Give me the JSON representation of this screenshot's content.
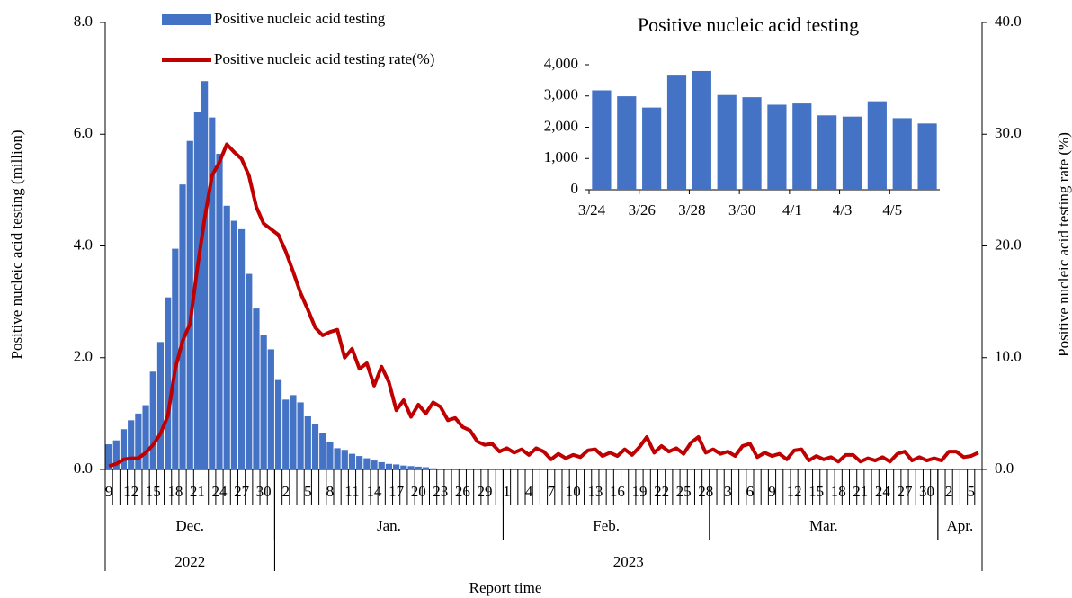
{
  "chart_data": [
    {
      "type": "bar_line",
      "x_label": "Report time",
      "y_label": "Positive nucleic acid testing (million)",
      "y2_label": "Positive nucleic acid testing rate (%)",
      "x": [
        "2022-12-09",
        "2022-12-10",
        "2022-12-11",
        "2022-12-12",
        "2022-12-13",
        "2022-12-14",
        "2022-12-15",
        "2022-12-16",
        "2022-12-17",
        "2022-12-18",
        "2022-12-19",
        "2022-12-20",
        "2022-12-21",
        "2022-12-22",
        "2022-12-23",
        "2022-12-24",
        "2022-12-25",
        "2022-12-26",
        "2022-12-27",
        "2022-12-28",
        "2022-12-29",
        "2022-12-30",
        "2022-12-31",
        "2023-01-01",
        "2023-01-02",
        "2023-01-03",
        "2023-01-04",
        "2023-01-05",
        "2023-01-06",
        "2023-01-07",
        "2023-01-08",
        "2023-01-09",
        "2023-01-10",
        "2023-01-11",
        "2023-01-12",
        "2023-01-13",
        "2023-01-14",
        "2023-01-15",
        "2023-01-16",
        "2023-01-17",
        "2023-01-18",
        "2023-01-19",
        "2023-01-20",
        "2023-01-21",
        "2023-01-22",
        "2023-01-23",
        "2023-01-24",
        "2023-01-25",
        "2023-01-26",
        "2023-01-27",
        "2023-01-28",
        "2023-01-29",
        "2023-01-30",
        "2023-01-31",
        "2023-02-01",
        "2023-02-02",
        "2023-02-03",
        "2023-02-04",
        "2023-02-05",
        "2023-02-06",
        "2023-02-07",
        "2023-02-08",
        "2023-02-09",
        "2023-02-10",
        "2023-02-11",
        "2023-02-12",
        "2023-02-13",
        "2023-02-14",
        "2023-02-15",
        "2023-02-16",
        "2023-02-17",
        "2023-02-18",
        "2023-02-19",
        "2023-02-20",
        "2023-02-21",
        "2023-02-22",
        "2023-02-23",
        "2023-02-24",
        "2023-02-25",
        "2023-02-26",
        "2023-02-27",
        "2023-02-28",
        "2023-03-01",
        "2023-03-02",
        "2023-03-03",
        "2023-03-04",
        "2023-03-05",
        "2023-03-06",
        "2023-03-07",
        "2023-03-08",
        "2023-03-09",
        "2023-03-10",
        "2023-03-11",
        "2023-03-12",
        "2023-03-13",
        "2023-03-14",
        "2023-03-15",
        "2023-03-16",
        "2023-03-17",
        "2023-03-18",
        "2023-03-19",
        "2023-03-20",
        "2023-03-21",
        "2023-03-22",
        "2023-03-23",
        "2023-03-24",
        "2023-03-25",
        "2023-03-26",
        "2023-03-27",
        "2023-03-28",
        "2023-03-29",
        "2023-03-30",
        "2023-03-31",
        "2023-04-01",
        "2023-04-02",
        "2023-04-03",
        "2023-04-04",
        "2023-04-05",
        "2023-04-06"
      ],
      "xticks": [
        {
          "value": "2022-12-09",
          "label": "9"
        },
        {
          "value": "2022-12-12",
          "label": "12"
        },
        {
          "value": "2022-12-15",
          "label": "15"
        },
        {
          "value": "2022-12-18",
          "label": "18"
        },
        {
          "value": "2022-12-21",
          "label": "21"
        },
        {
          "value": "2022-12-24",
          "label": "24"
        },
        {
          "value": "2022-12-27",
          "label": "27"
        },
        {
          "value": "2022-12-30",
          "label": "30"
        },
        {
          "value": "2023-01-02",
          "label": "2"
        },
        {
          "value": "2023-01-05",
          "label": "5"
        },
        {
          "value": "2023-01-08",
          "label": "8"
        },
        {
          "value": "2023-01-11",
          "label": "11"
        },
        {
          "value": "2023-01-14",
          "label": "14"
        },
        {
          "value": "2023-01-17",
          "label": "17"
        },
        {
          "value": "2023-01-20",
          "label": "20"
        },
        {
          "value": "2023-01-23",
          "label": "23"
        },
        {
          "value": "2023-01-26",
          "label": "26"
        },
        {
          "value": "2023-01-29",
          "label": "29"
        },
        {
          "value": "2023-02-01",
          "label": "1"
        },
        {
          "value": "2023-02-04",
          "label": "4"
        },
        {
          "value": "2023-02-07",
          "label": "7"
        },
        {
          "value": "2023-02-10",
          "label": "10"
        },
        {
          "value": "2023-02-13",
          "label": "13"
        },
        {
          "value": "2023-02-16",
          "label": "16"
        },
        {
          "value": "2023-02-19",
          "label": "19"
        },
        {
          "value": "2023-02-22",
          "label": "22"
        },
        {
          "value": "2023-02-25",
          "label": "25"
        },
        {
          "value": "2023-02-28",
          "label": "28"
        },
        {
          "value": "2023-03-03",
          "label": "3"
        },
        {
          "value": "2023-03-06",
          "label": "6"
        },
        {
          "value": "2023-03-09",
          "label": "9"
        },
        {
          "value": "2023-03-12",
          "label": "12"
        },
        {
          "value": "2023-03-15",
          "label": "15"
        },
        {
          "value": "2023-03-18",
          "label": "18"
        },
        {
          "value": "2023-03-21",
          "label": "21"
        },
        {
          "value": "2023-03-24",
          "label": "24"
        },
        {
          "value": "2023-03-27",
          "label": "27"
        },
        {
          "value": "2023-03-30",
          "label": "30"
        },
        {
          "value": "2023-04-02",
          "label": "2"
        },
        {
          "value": "2023-04-05",
          "label": "5"
        }
      ],
      "month_labels": [
        {
          "value": "2022-12",
          "label": "Dec."
        },
        {
          "value": "2023-01",
          "label": "Jan."
        },
        {
          "value": "2023-02",
          "label": "Feb."
        },
        {
          "value": "2023-03",
          "label": "Mar."
        },
        {
          "value": "2023-04",
          "label": "Apr."
        }
      ],
      "year_labels": [
        {
          "value": "2022",
          "label": "2022"
        },
        {
          "value": "2023",
          "label": "2023"
        }
      ],
      "ylim": [
        0,
        8
      ],
      "yticks": [
        {
          "value": 0,
          "label": "0.0"
        },
        {
          "value": 2,
          "label": "2.0"
        },
        {
          "value": 4,
          "label": "4.0"
        },
        {
          "value": 6,
          "label": "6.0"
        },
        {
          "value": 8,
          "label": "8.0"
        }
      ],
      "y2lim": [
        0,
        40
      ],
      "y2ticks": [
        {
          "value": 0,
          "label": "0.0"
        },
        {
          "value": 10,
          "label": "10.0"
        },
        {
          "value": 20,
          "label": "20.0"
        },
        {
          "value": 30,
          "label": "30.0"
        },
        {
          "value": 40,
          "label": "40.0"
        }
      ],
      "series": [
        {
          "name": "Positive nucleic acid testing",
          "type": "bar",
          "color": "#4472c4",
          "values": [
            0.45,
            0.52,
            0.72,
            0.88,
            1.0,
            1.15,
            1.75,
            2.28,
            3.08,
            3.95,
            5.1,
            5.88,
            6.4,
            6.95,
            6.3,
            5.65,
            4.72,
            4.45,
            4.3,
            3.5,
            2.88,
            2.4,
            2.15,
            1.6,
            1.25,
            1.33,
            1.2,
            0.95,
            0.82,
            0.65,
            0.5,
            0.38,
            0.35,
            0.28,
            0.24,
            0.2,
            0.16,
            0.13,
            0.1,
            0.09,
            0.07,
            0.06,
            0.05,
            0.04,
            0.02,
            0.01,
            0.005,
            0.004,
            0.004,
            0.004,
            0.004,
            0.004,
            0.004,
            0.004,
            0.004,
            0.004,
            0.004,
            0.004,
            0.004,
            0.004,
            0.004,
            0.004,
            0.004,
            0.004,
            0.004,
            0.004,
            0.004,
            0.004,
            0.004,
            0.004,
            0.004,
            0.004,
            0.004,
            0.004,
            0.004,
            0.004,
            0.004,
            0.004,
            0.004,
            0.004,
            0.004,
            0.004,
            0.003,
            0.003,
            0.003,
            0.003,
            0.003,
            0.003,
            0.003,
            0.003,
            0.003,
            0.003,
            0.003,
            0.003,
            0.003,
            0.003,
            0.003,
            0.003,
            0.003,
            0.003,
            0.003,
            0.003,
            0.003,
            0.003,
            0.003,
            0.003,
            0.003,
            0.003,
            0.003,
            0.003,
            0.003,
            0.003,
            0.003,
            0.003,
            0.003,
            0.003,
            0.003,
            0.003,
            0.003
          ]
        },
        {
          "name": "Positive nucleic acid testing rate(%)",
          "type": "line",
          "axis": "y2",
          "color": "#c00000",
          "values": [
            0.3,
            0.5,
            0.9,
            1.0,
            1.0,
            1.5,
            2.2,
            3.2,
            4.8,
            9.0,
            11.5,
            13.0,
            18.0,
            22.5,
            26.3,
            27.5,
            29.1,
            28.4,
            27.8,
            26.3,
            23.5,
            22.0,
            21.5,
            21.0,
            19.5,
            17.7,
            15.8,
            14.3,
            12.7,
            12.0,
            12.3,
            12.5,
            10.0,
            10.8,
            9.0,
            9.5,
            7.5,
            9.2,
            7.8,
            5.3,
            6.2,
            4.7,
            5.8,
            5.0,
            6.0,
            5.6,
            4.4,
            4.6,
            3.8,
            3.5,
            2.5,
            2.2,
            2.3,
            1.6,
            1.9,
            1.5,
            1.8,
            1.3,
            1.9,
            1.6,
            0.9,
            1.4,
            1.0,
            1.3,
            1.1,
            1.7,
            1.8,
            1.2,
            1.5,
            1.2,
            1.8,
            1.3,
            2.0,
            2.9,
            1.5,
            2.1,
            1.6,
            1.9,
            1.4,
            2.4,
            2.9,
            1.5,
            1.8,
            1.4,
            1.6,
            1.2,
            2.1,
            2.3,
            1.1,
            1.5,
            1.2,
            1.4,
            0.9,
            1.7,
            1.8,
            0.8,
            1.2,
            0.9,
            1.1,
            0.7,
            1.3,
            1.3,
            0.7,
            1.0,
            0.8,
            1.1,
            0.7,
            1.4,
            1.6,
            0.8,
            1.1,
            0.8,
            1.0,
            0.8,
            1.6,
            1.6,
            1.1,
            1.2,
            1.5
          ]
        }
      ]
    },
    {
      "type": "bar",
      "title": "Positive nucleic acid testing",
      "categories": [
        "3/24",
        null,
        "3/26",
        null,
        "3/28",
        null,
        "3/30",
        null,
        "4/1",
        null,
        "4/3",
        null,
        "4/5",
        null
      ],
      "values": [
        3180,
        2990,
        2630,
        3680,
        3800,
        3030,
        2960,
        2720,
        2760,
        2380,
        2340,
        2830,
        2290,
        2120
      ],
      "color": "#4472c4",
      "ylim": [
        0,
        4000
      ],
      "yticks": [
        0,
        {
          "value": 1000,
          "label": "1,000"
        },
        {
          "value": 2000,
          "label": "2,000"
        },
        {
          "value": 3000,
          "label": "3,000"
        },
        {
          "value": 4000,
          "label": "4,000"
        }
      ]
    }
  ]
}
